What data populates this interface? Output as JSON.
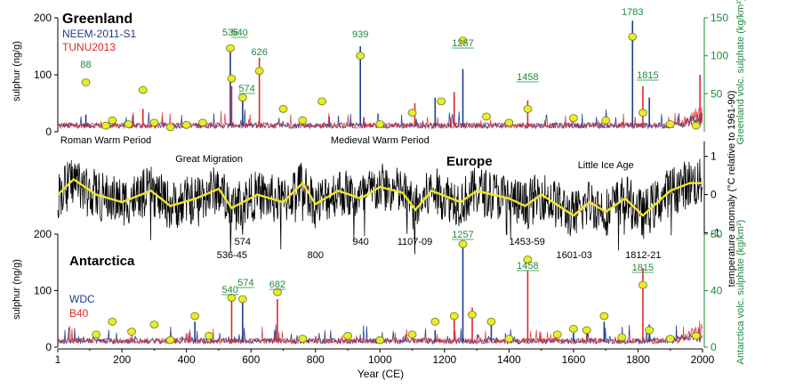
{
  "chart_data": [
    {
      "type": "line",
      "panel": "greenland",
      "title": "Greenland",
      "ylabel": "sulphur (ng/g)",
      "ylim": [
        0,
        200
      ],
      "yticks": [
        "0",
        "100",
        "200"
      ],
      "y2label": "Greenland volc. sulphate (kg/km²)",
      "y2lim": [
        0,
        150
      ],
      "y2ticks": [
        "50",
        "100",
        "150"
      ],
      "series": [
        {
          "name": "NEEM-2011-S1",
          "color": "#1f3b8f"
        },
        {
          "name": "TUNU2013",
          "color": "#e0282c"
        }
      ],
      "spikes": [
        {
          "year": 88,
          "value": 30
        },
        {
          "year": 265,
          "value": 40
        },
        {
          "year": 536,
          "value": 140
        },
        {
          "year": 540,
          "value": 80
        },
        {
          "year": 574,
          "value": 60
        },
        {
          "year": 626,
          "value": 130
        },
        {
          "year": 939,
          "value": 150
        },
        {
          "year": 1108,
          "value": 50
        },
        {
          "year": 1171,
          "value": 60
        },
        {
          "year": 1230,
          "value": 70
        },
        {
          "year": 1257,
          "value": 110
        },
        {
          "year": 1458,
          "value": 55
        },
        {
          "year": 1783,
          "value": 195
        },
        {
          "year": 1815,
          "value": 80
        },
        {
          "year": 1835,
          "value": 60
        },
        {
          "year": 1992,
          "value": 100
        }
      ],
      "labels": [
        {
          "text": "88",
          "year": 88,
          "underline": false
        },
        {
          "text": "536",
          "year": 536,
          "underline": false
        },
        {
          "text": "540",
          "year": 565,
          "underline": true
        },
        {
          "text": "574",
          "year": 587,
          "underline": true
        },
        {
          "text": "626",
          "year": 626,
          "underline": false
        },
        {
          "text": "939",
          "year": 939,
          "underline": false
        },
        {
          "text": "1257",
          "year": 1257,
          "underline": true
        },
        {
          "text": "1458",
          "year": 1458,
          "underline": true
        },
        {
          "text": "1783",
          "year": 1783,
          "underline": false
        },
        {
          "text": "1815",
          "year": 1830,
          "underline": true
        }
      ],
      "markers": [
        {
          "year": 88,
          "value": 65
        },
        {
          "year": 170,
          "value": 15
        },
        {
          "year": 265,
          "value": 55
        },
        {
          "year": 536,
          "value": 110
        },
        {
          "year": 540,
          "value": 70
        },
        {
          "year": 574,
          "value": 45
        },
        {
          "year": 626,
          "value": 80
        },
        {
          "year": 939,
          "value": 100
        },
        {
          "year": 1257,
          "value": 120
        },
        {
          "year": 1458,
          "value": 30
        },
        {
          "year": 1783,
          "value": 125
        },
        {
          "year": 1815,
          "value": 25
        },
        {
          "year": 150,
          "value": 8
        },
        {
          "year": 220,
          "value": 10
        },
        {
          "year": 300,
          "value": 12
        },
        {
          "year": 350,
          "value": 6
        },
        {
          "year": 400,
          "value": 9
        },
        {
          "year": 450,
          "value": 12
        },
        {
          "year": 700,
          "value": 30
        },
        {
          "year": 760,
          "value": 15
        },
        {
          "year": 820,
          "value": 40
        },
        {
          "year": 1000,
          "value": 10
        },
        {
          "year": 1100,
          "value": 25
        },
        {
          "year": 1190,
          "value": 40
        },
        {
          "year": 1330,
          "value": 20
        },
        {
          "year": 1400,
          "value": 12
        },
        {
          "year": 1600,
          "value": 18
        },
        {
          "year": 1700,
          "value": 15
        },
        {
          "year": 1900,
          "value": 10
        },
        {
          "year": 1980,
          "value": 8
        }
      ]
    },
    {
      "type": "line",
      "panel": "europe",
      "title": "Europe",
      "y2label": "temperature anomaly (°C relative to 1961-90)",
      "y2lim": [
        -1.2,
        1.6
      ],
      "y2ticks": [
        "-1",
        "0",
        "1"
      ],
      "series": [
        {
          "name": "",
          "color": "#000000"
        },
        {
          "name": "",
          "color": "#f2e52a"
        }
      ],
      "smoothed": [
        {
          "year": 1,
          "value": 0.0
        },
        {
          "year": 50,
          "value": 0.4
        },
        {
          "year": 120,
          "value": 0.0
        },
        {
          "year": 200,
          "value": -0.2
        },
        {
          "year": 290,
          "value": 0.1
        },
        {
          "year": 350,
          "value": -0.3
        },
        {
          "year": 430,
          "value": -0.1
        },
        {
          "year": 500,
          "value": 0.15
        },
        {
          "year": 540,
          "value": -0.35
        },
        {
          "year": 620,
          "value": 0.0
        },
        {
          "year": 700,
          "value": -0.2
        },
        {
          "year": 760,
          "value": 0.3
        },
        {
          "year": 800,
          "value": -0.25
        },
        {
          "year": 870,
          "value": 0.1
        },
        {
          "year": 940,
          "value": -0.1
        },
        {
          "year": 1000,
          "value": 0.2
        },
        {
          "year": 1070,
          "value": 0.05
        },
        {
          "year": 1110,
          "value": -0.4
        },
        {
          "year": 1160,
          "value": 0.1
        },
        {
          "year": 1250,
          "value": -0.2
        },
        {
          "year": 1300,
          "value": 0.1
        },
        {
          "year": 1400,
          "value": -0.1
        },
        {
          "year": 1450,
          "value": -0.3
        },
        {
          "year": 1500,
          "value": 0.0
        },
        {
          "year": 1600,
          "value": -0.55
        },
        {
          "year": 1650,
          "value": -0.2
        },
        {
          "year": 1700,
          "value": -0.45
        },
        {
          "year": 1760,
          "value": -0.1
        },
        {
          "year": 1815,
          "value": -0.55
        },
        {
          "year": 1900,
          "value": 0.1
        },
        {
          "year": 1960,
          "value": 0.3
        },
        {
          "year": 2000,
          "value": 0.3
        }
      ],
      "annotations_top": [
        {
          "text": "Roman Warm Period",
          "year": 150
        },
        {
          "text": "Medieval Warm Period",
          "year": 1000
        },
        {
          "text": "Great Migration",
          "year": 470
        },
        {
          "text": "Little Ice Age",
          "year": 1700
        }
      ],
      "annotations_bottom": [
        {
          "text": "574",
          "year": 574,
          "row": 1
        },
        {
          "text": "536-45",
          "year": 541,
          "row": 2
        },
        {
          "text": "800",
          "year": 800,
          "row": 2
        },
        {
          "text": "940",
          "year": 940,
          "row": 1
        },
        {
          "text": "1107-09",
          "year": 1108,
          "row": 1
        },
        {
          "text": "1453-59",
          "year": 1456,
          "row": 1
        },
        {
          "text": "1601-03",
          "year": 1602,
          "row": 2
        },
        {
          "text": "1812-21",
          "year": 1816,
          "row": 2
        }
      ]
    },
    {
      "type": "line",
      "panel": "antarctica",
      "title": "Antarctica",
      "ylabel": "sulphur (ng/g)",
      "ylim": [
        0,
        200
      ],
      "yticks": [
        "0",
        "100",
        "200"
      ],
      "y2label": "Antarctica volc. sulphate (kg/km²)",
      "y2lim": [
        0,
        80
      ],
      "y2ticks": [
        "0",
        "40",
        "80"
      ],
      "series": [
        {
          "name": "WDC",
          "color": "#1f3b8f"
        },
        {
          "name": "B40",
          "color": "#e0282c"
        }
      ],
      "spikes": [
        {
          "year": 426,
          "value": 45
        },
        {
          "year": 540,
          "value": 90
        },
        {
          "year": 574,
          "value": 85
        },
        {
          "year": 682,
          "value": 85
        },
        {
          "year": 1171,
          "value": 30
        },
        {
          "year": 1230,
          "value": 50
        },
        {
          "year": 1257,
          "value": 185
        },
        {
          "year": 1286,
          "value": 70
        },
        {
          "year": 1345,
          "value": 40
        },
        {
          "year": 1458,
          "value": 135
        },
        {
          "year": 1600,
          "value": 25
        },
        {
          "year": 1641,
          "value": 30
        },
        {
          "year": 1695,
          "value": 45
        },
        {
          "year": 1815,
          "value": 140
        },
        {
          "year": 1835,
          "value": 40
        }
      ],
      "labels": [
        {
          "text": "540",
          "year": 535,
          "underline": true
        },
        {
          "text": "574",
          "year": 584,
          "underline": true
        },
        {
          "text": "682",
          "year": 682,
          "underline": true
        },
        {
          "text": "1257",
          "year": 1257,
          "underline": true
        },
        {
          "text": "1458",
          "year": 1458,
          "underline": true
        },
        {
          "text": "1815",
          "year": 1815,
          "underline": true
        }
      ],
      "markers": [
        {
          "year": 426,
          "value": 22
        },
        {
          "year": 540,
          "value": 35
        },
        {
          "year": 574,
          "value": 34
        },
        {
          "year": 682,
          "value": 39
        },
        {
          "year": 1257,
          "value": 73
        },
        {
          "year": 1458,
          "value": 62
        },
        {
          "year": 1815,
          "value": 44
        },
        {
          "year": 1171,
          "value": 18
        },
        {
          "year": 1230,
          "value": 22
        },
        {
          "year": 1286,
          "value": 23
        },
        {
          "year": 1345,
          "value": 18
        },
        {
          "year": 1600,
          "value": 13
        },
        {
          "year": 1641,
          "value": 12
        },
        {
          "year": 1695,
          "value": 22
        },
        {
          "year": 1835,
          "value": 12
        },
        {
          "year": 120,
          "value": 9
        },
        {
          "year": 170,
          "value": 18
        },
        {
          "year": 230,
          "value": 11
        },
        {
          "year": 300,
          "value": 16
        },
        {
          "year": 350,
          "value": 5
        },
        {
          "year": 470,
          "value": 8
        },
        {
          "year": 760,
          "value": 6
        },
        {
          "year": 900,
          "value": 8
        },
        {
          "year": 1000,
          "value": 5
        },
        {
          "year": 1100,
          "value": 9
        },
        {
          "year": 1400,
          "value": 6
        },
        {
          "year": 1550,
          "value": 9
        },
        {
          "year": 1750,
          "value": 7
        },
        {
          "year": 1900,
          "value": 6
        },
        {
          "year": 1980,
          "value": 8
        }
      ]
    }
  ],
  "xaxis": {
    "label": "Year (CE)",
    "range": [
      1,
      2000
    ],
    "ticks": [
      {
        "value": 1,
        "label": "1"
      },
      {
        "value": 200,
        "label": "200"
      },
      {
        "value": 400,
        "label": "400"
      },
      {
        "value": 600,
        "label": "600"
      },
      {
        "value": 800,
        "label": "800"
      },
      {
        "value": 1000,
        "label": "1000"
      },
      {
        "value": 1200,
        "label": "1200"
      },
      {
        "value": 1400,
        "label": "1400"
      },
      {
        "value": 1600,
        "label": "1600"
      },
      {
        "value": 1800,
        "label": "1800"
      },
      {
        "value": 2000,
        "label": "2000"
      }
    ]
  },
  "colors": {
    "label_green": "#1f8a3a",
    "marker_fill": "#e8ec2a",
    "marker_stroke": "#6a7a1a",
    "smooth_yellow": "#f2e52a"
  }
}
